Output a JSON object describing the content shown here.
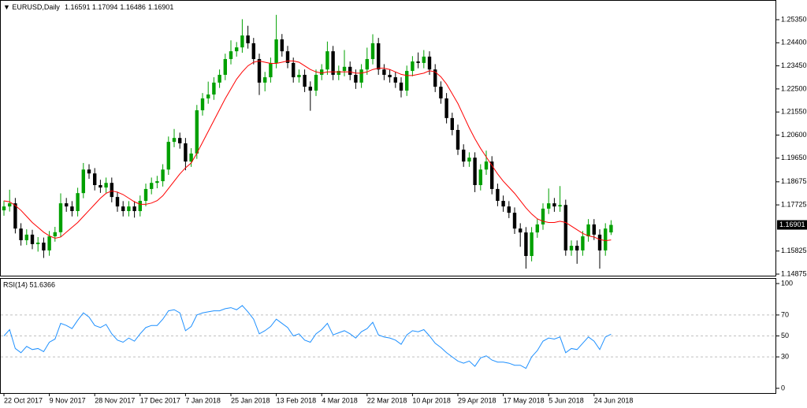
{
  "chart_data": [
    {
      "type": "candlestick",
      "title": "EURUSD,Daily",
      "grid": false,
      "up_color": "#00a000",
      "down_color": "#000000",
      "categories": [
        "22 Oct 2017",
        null,
        null,
        null,
        null,
        null,
        null,
        null,
        "9 Nov 2017",
        null,
        null,
        null,
        null,
        null,
        null,
        null,
        "28 Nov 2017",
        null,
        null,
        null,
        null,
        null,
        null,
        null,
        "17 Dec 2017",
        null,
        null,
        null,
        null,
        null,
        null,
        null,
        "7 Jan 2018",
        null,
        null,
        null,
        null,
        null,
        null,
        null,
        "25 Jan 2018",
        null,
        null,
        null,
        null,
        null,
        null,
        null,
        "13 Feb 2018",
        null,
        null,
        null,
        null,
        null,
        null,
        null,
        "4 Mar 2018",
        null,
        null,
        null,
        null,
        null,
        null,
        null,
        "22 Mar 2018",
        null,
        null,
        null,
        null,
        null,
        null,
        null,
        "10 Apr 2018",
        null,
        null,
        null,
        null,
        null,
        null,
        null,
        "29 Apr 2018",
        null,
        null,
        null,
        null,
        null,
        null,
        null,
        "17 May 2018",
        null,
        null,
        null,
        null,
        null,
        null,
        null,
        "5 Jun 2018",
        null,
        null,
        null,
        null,
        null,
        null,
        null,
        "24 Jun 2018",
        null,
        null,
        null
      ],
      "open": [
        1.175,
        1.1766,
        1.1779,
        1.1675,
        1.1627,
        1.165,
        1.1611,
        1.1617,
        1.1585,
        1.1643,
        1.166,
        1.1779,
        1.1766,
        1.1747,
        1.1821,
        1.1918,
        1.1902,
        1.1854,
        1.1844,
        1.1863,
        1.1805,
        1.1766,
        1.1747,
        1.1766,
        1.1747,
        1.1789,
        1.1838,
        1.1863,
        1.187,
        1.1918,
        1.2032,
        1.2048,
        1.2026,
        1.1951,
        1.1984,
        1.2162,
        1.2211,
        1.2227,
        1.2276,
        1.2308,
        1.2373,
        1.2405,
        1.2421,
        1.247,
        1.2438,
        1.2373,
        1.2276,
        1.2298,
        1.2357,
        1.2454,
        1.2405,
        1.2357,
        1.2298,
        1.2308,
        1.2259,
        1.2243,
        1.2308,
        1.233,
        1.2405,
        1.2308,
        1.2324,
        1.2341,
        1.2308,
        1.2276,
        1.233,
        1.2373,
        1.2438,
        1.233,
        1.2308,
        1.2298,
        1.2276,
        1.2243,
        1.2324,
        1.2363,
        1.2357,
        1.2383,
        1.233,
        1.2259,
        1.2211,
        1.213,
        1.2081,
        1.2,
        1.1951,
        1.1967,
        1.1854,
        1.1918,
        1.1951,
        1.1838,
        1.1789,
        1.1766,
        1.174,
        1.1675,
        1.1659,
        1.1562,
        1.1659,
        1.1692,
        1.1757,
        1.1779,
        1.1766,
        1.1772,
        1.1585,
        1.1604,
        1.1585,
        1.1643,
        1.1692,
        1.165,
        1.1585,
        1.16591
      ],
      "high": [
        1.179,
        1.1835,
        1.1801,
        1.1697,
        1.1672,
        1.167,
        1.164,
        1.1638,
        1.1665,
        1.1682,
        1.182,
        1.1801,
        1.1788,
        1.1843,
        1.1945,
        1.194,
        1.1924,
        1.1876,
        1.1885,
        1.1885,
        1.1827,
        1.1788,
        1.1788,
        1.1788,
        1.1811,
        1.186,
        1.1885,
        1.1892,
        1.194,
        1.2054,
        1.2085,
        1.207,
        1.2048,
        1.2006,
        1.2184,
        1.2233,
        1.228,
        1.2298,
        1.233,
        1.2395,
        1.245,
        1.2443,
        1.2537,
        1.251,
        1.246,
        1.2395,
        1.232,
        1.2379,
        1.2555,
        1.2476,
        1.2427,
        1.2379,
        1.233,
        1.233,
        1.2281,
        1.233,
        1.2352,
        1.2445,
        1.2427,
        1.2346,
        1.241,
        1.2363,
        1.233,
        1.2352,
        1.242,
        1.2475,
        1.246,
        1.2352,
        1.233,
        1.232,
        1.2298,
        1.2346,
        1.2385,
        1.24,
        1.241,
        1.2405,
        1.2352,
        1.2281,
        1.2233,
        1.2152,
        1.2103,
        1.2022,
        1.1989,
        1.1989,
        1.194,
        1.1996,
        1.1973,
        1.186,
        1.1811,
        1.1788,
        1.1762,
        1.1697,
        1.1681,
        1.1681,
        1.1714,
        1.1779,
        1.184,
        1.1801,
        1.185,
        1.1794,
        1.1626,
        1.1626,
        1.1665,
        1.1714,
        1.1714,
        1.1672,
        1.1697,
        1.17094
      ],
      "low": [
        1.1728,
        1.1745,
        1.1655,
        1.1605,
        1.1607,
        1.159,
        1.158,
        1.1554,
        1.1563,
        1.1621,
        1.164,
        1.1744,
        1.1725,
        1.1725,
        1.18,
        1.188,
        1.1832,
        1.1822,
        1.1822,
        1.1783,
        1.1744,
        1.1725,
        1.1725,
        1.172,
        1.1725,
        1.1767,
        1.1816,
        1.1841,
        1.1848,
        1.1896,
        1.201,
        1.2004,
        1.1915,
        1.1929,
        1.1962,
        1.214,
        1.2189,
        1.2205,
        1.2254,
        1.2286,
        1.2351,
        1.2383,
        1.2399,
        1.2416,
        1.2351,
        1.2225,
        1.224,
        1.2276,
        1.2335,
        1.2383,
        1.2335,
        1.2276,
        1.2276,
        1.2237,
        1.216,
        1.2221,
        1.2286,
        1.2308,
        1.2286,
        1.2286,
        1.2302,
        1.2286,
        1.225,
        1.2254,
        1.2308,
        1.2351,
        1.2308,
        1.2286,
        1.2276,
        1.2254,
        1.2215,
        1.2221,
        1.2302,
        1.2335,
        1.2335,
        1.2308,
        1.2237,
        1.2189,
        1.2108,
        1.2059,
        1.1978,
        1.1929,
        1.1929,
        1.1825,
        1.1832,
        1.1896,
        1.1816,
        1.1767,
        1.1744,
        1.1718,
        1.1653,
        1.16,
        1.151,
        1.154,
        1.1637,
        1.167,
        1.1735,
        1.1744,
        1.1744,
        1.1563,
        1.1563,
        1.153,
        1.1563,
        1.1621,
        1.1628,
        1.151,
        1.1563,
        1.16486
      ],
      "close": [
        1.1766,
        1.1779,
        1.1675,
        1.1627,
        1.165,
        1.1611,
        1.1617,
        1.1585,
        1.1643,
        1.166,
        1.1779,
        1.1766,
        1.1747,
        1.1821,
        1.1918,
        1.1902,
        1.1854,
        1.1844,
        1.1863,
        1.1805,
        1.1766,
        1.1747,
        1.1766,
        1.1747,
        1.1789,
        1.1838,
        1.1863,
        1.187,
        1.1918,
        1.2032,
        1.2048,
        1.2026,
        1.1951,
        1.1984,
        1.2162,
        1.2211,
        1.2227,
        1.2276,
        1.2308,
        1.2373,
        1.2405,
        1.2421,
        1.247,
        1.2438,
        1.2373,
        1.2276,
        1.2298,
        1.2357,
        1.2454,
        1.2405,
        1.2357,
        1.2298,
        1.2308,
        1.2259,
        1.2243,
        1.2308,
        1.233,
        1.2405,
        1.2308,
        1.2324,
        1.2341,
        1.2308,
        1.2276,
        1.233,
        1.2373,
        1.2438,
        1.233,
        1.2308,
        1.2298,
        1.2276,
        1.2243,
        1.2324,
        1.2363,
        1.2357,
        1.2383,
        1.233,
        1.2259,
        1.2211,
        1.213,
        1.2081,
        1.2,
        1.1951,
        1.1967,
        1.1854,
        1.1918,
        1.1951,
        1.1838,
        1.1789,
        1.1766,
        1.174,
        1.1675,
        1.1659,
        1.1562,
        1.1659,
        1.1692,
        1.1757,
        1.1779,
        1.1766,
        1.1772,
        1.1585,
        1.1604,
        1.1585,
        1.1643,
        1.1692,
        1.165,
        1.1585,
        1.1675,
        1.16901
      ],
      "overlay": {
        "color": "#ff0000",
        "values": [
          1.1789,
          1.1785,
          1.177,
          1.175,
          1.1725,
          1.17,
          1.168,
          1.166,
          1.1645,
          1.1635,
          1.164,
          1.166,
          1.168,
          1.17,
          1.1725,
          1.175,
          1.1775,
          1.18,
          1.182,
          1.183,
          1.1825,
          1.1815,
          1.18,
          1.1785,
          1.1775,
          1.1775,
          1.178,
          1.179,
          1.181,
          1.184,
          1.187,
          1.19,
          1.1925,
          1.1945,
          1.1985,
          1.203,
          1.2075,
          1.212,
          1.2165,
          1.221,
          1.225,
          1.229,
          1.232,
          1.2345,
          1.236,
          1.2365,
          1.236,
          1.2355,
          1.2355,
          1.236,
          1.2365,
          1.2365,
          1.236,
          1.2345,
          1.233,
          1.232,
          1.2315,
          1.232,
          1.232,
          1.232,
          1.232,
          1.232,
          1.2315,
          1.2315,
          1.232,
          1.233,
          1.2335,
          1.2335,
          1.233,
          1.232,
          1.231,
          1.2305,
          1.2305,
          1.231,
          1.2315,
          1.2325,
          1.232,
          1.23,
          1.227,
          1.223,
          1.219,
          1.214,
          1.209,
          1.2045,
          1.2005,
          1.197,
          1.1935,
          1.19,
          1.187,
          1.1845,
          1.182,
          1.179,
          1.176,
          1.1735,
          1.1715,
          1.1705,
          1.17,
          1.17,
          1.1705,
          1.17,
          1.1685,
          1.167,
          1.1655,
          1.1645,
          1.164,
          1.163,
          1.1625,
          1.1628
        ]
      },
      "ylim": [
        1.1481,
        1.26161
      ],
      "yticks": [
        {
          "value": 1.2535,
          "label": "1.25350"
        },
        {
          "value": 1.244,
          "label": "1.24400"
        },
        {
          "value": 1.2345,
          "label": "1.23450"
        },
        {
          "value": 1.225,
          "label": "1.22500"
        },
        {
          "value": 1.2155,
          "label": "1.21550"
        },
        {
          "value": 1.206,
          "label": "1.20600"
        },
        {
          "value": 1.1965,
          "label": "1.19650"
        },
        {
          "value": 1.18675,
          "label": "1.18675"
        },
        {
          "value": 1.17725,
          "label": "1.17725"
        },
        {
          "value": 1.15825,
          "label": "1.15825"
        },
        {
          "value": 1.14875,
          "label": "1.14875"
        }
      ]
    },
    {
      "type": "line",
      "title": "RSI(14) 51.6366",
      "color": "#1e90ff",
      "grid": true,
      "values": [
        50,
        56,
        38,
        34,
        40,
        37,
        38,
        35,
        44,
        47,
        62,
        60,
        57,
        65,
        72,
        68,
        60,
        58,
        61,
        52,
        46,
        44,
        48,
        45,
        52,
        58,
        60,
        60,
        66,
        74,
        75,
        72,
        55,
        59,
        70,
        72,
        73,
        74,
        74,
        76,
        77,
        75,
        79,
        73,
        66,
        52,
        55,
        59,
        66,
        62,
        58,
        50,
        52,
        46,
        44,
        52,
        56,
        62,
        51,
        53,
        55,
        52,
        48,
        54,
        57,
        63,
        51,
        49,
        48,
        46,
        42,
        51,
        55,
        54,
        56,
        50,
        43,
        39,
        34,
        30,
        26,
        24,
        26,
        21,
        29,
        31,
        27,
        25,
        25,
        24,
        22,
        22,
        19,
        30,
        36,
        45,
        48,
        47,
        49,
        34,
        38,
        37,
        43,
        49,
        45,
        37,
        49,
        51.6366
      ],
      "ylim": [
        0,
        100
      ],
      "yticks": [
        100,
        70,
        50,
        30,
        0
      ]
    }
  ]
}
